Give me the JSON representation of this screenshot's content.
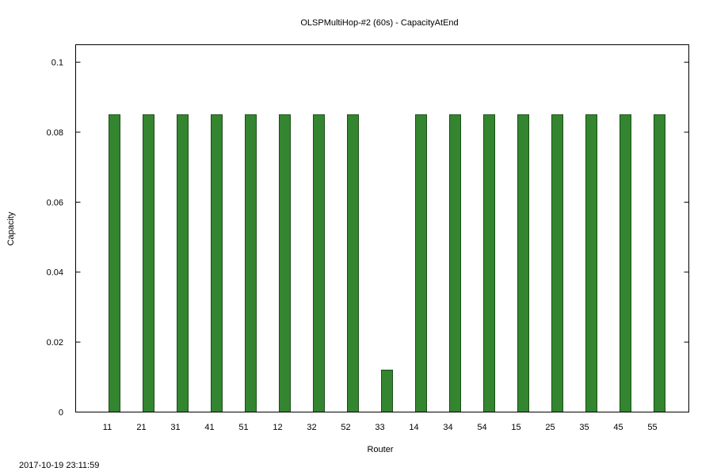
{
  "timestamp": "2017-10-19 23:11:59",
  "colors": {
    "bar": "#33862f",
    "bar_edge": "#1b4d18",
    "axis": "#000000"
  },
  "chart_data": {
    "type": "bar",
    "title": "OLSPMultiHop-#2 (60s) - CapacityAtEnd",
    "xlabel": "Router",
    "ylabel": "Capacity",
    "categories": [
      "11",
      "21",
      "31",
      "41",
      "51",
      "12",
      "32",
      "52",
      "33",
      "14",
      "34",
      "54",
      "15",
      "25",
      "35",
      "45",
      "55"
    ],
    "values": [
      0.085,
      0.085,
      0.085,
      0.085,
      0.085,
      0.085,
      0.085,
      0.085,
      0.012,
      0.085,
      0.085,
      0.085,
      0.085,
      0.085,
      0.085,
      0.085,
      0.085
    ],
    "ylim": [
      0,
      0.105
    ],
    "yticks": [
      "0",
      "0.02",
      "0.04",
      "0.06",
      "0.08",
      "0.1"
    ],
    "grid": false,
    "legend": "none"
  }
}
